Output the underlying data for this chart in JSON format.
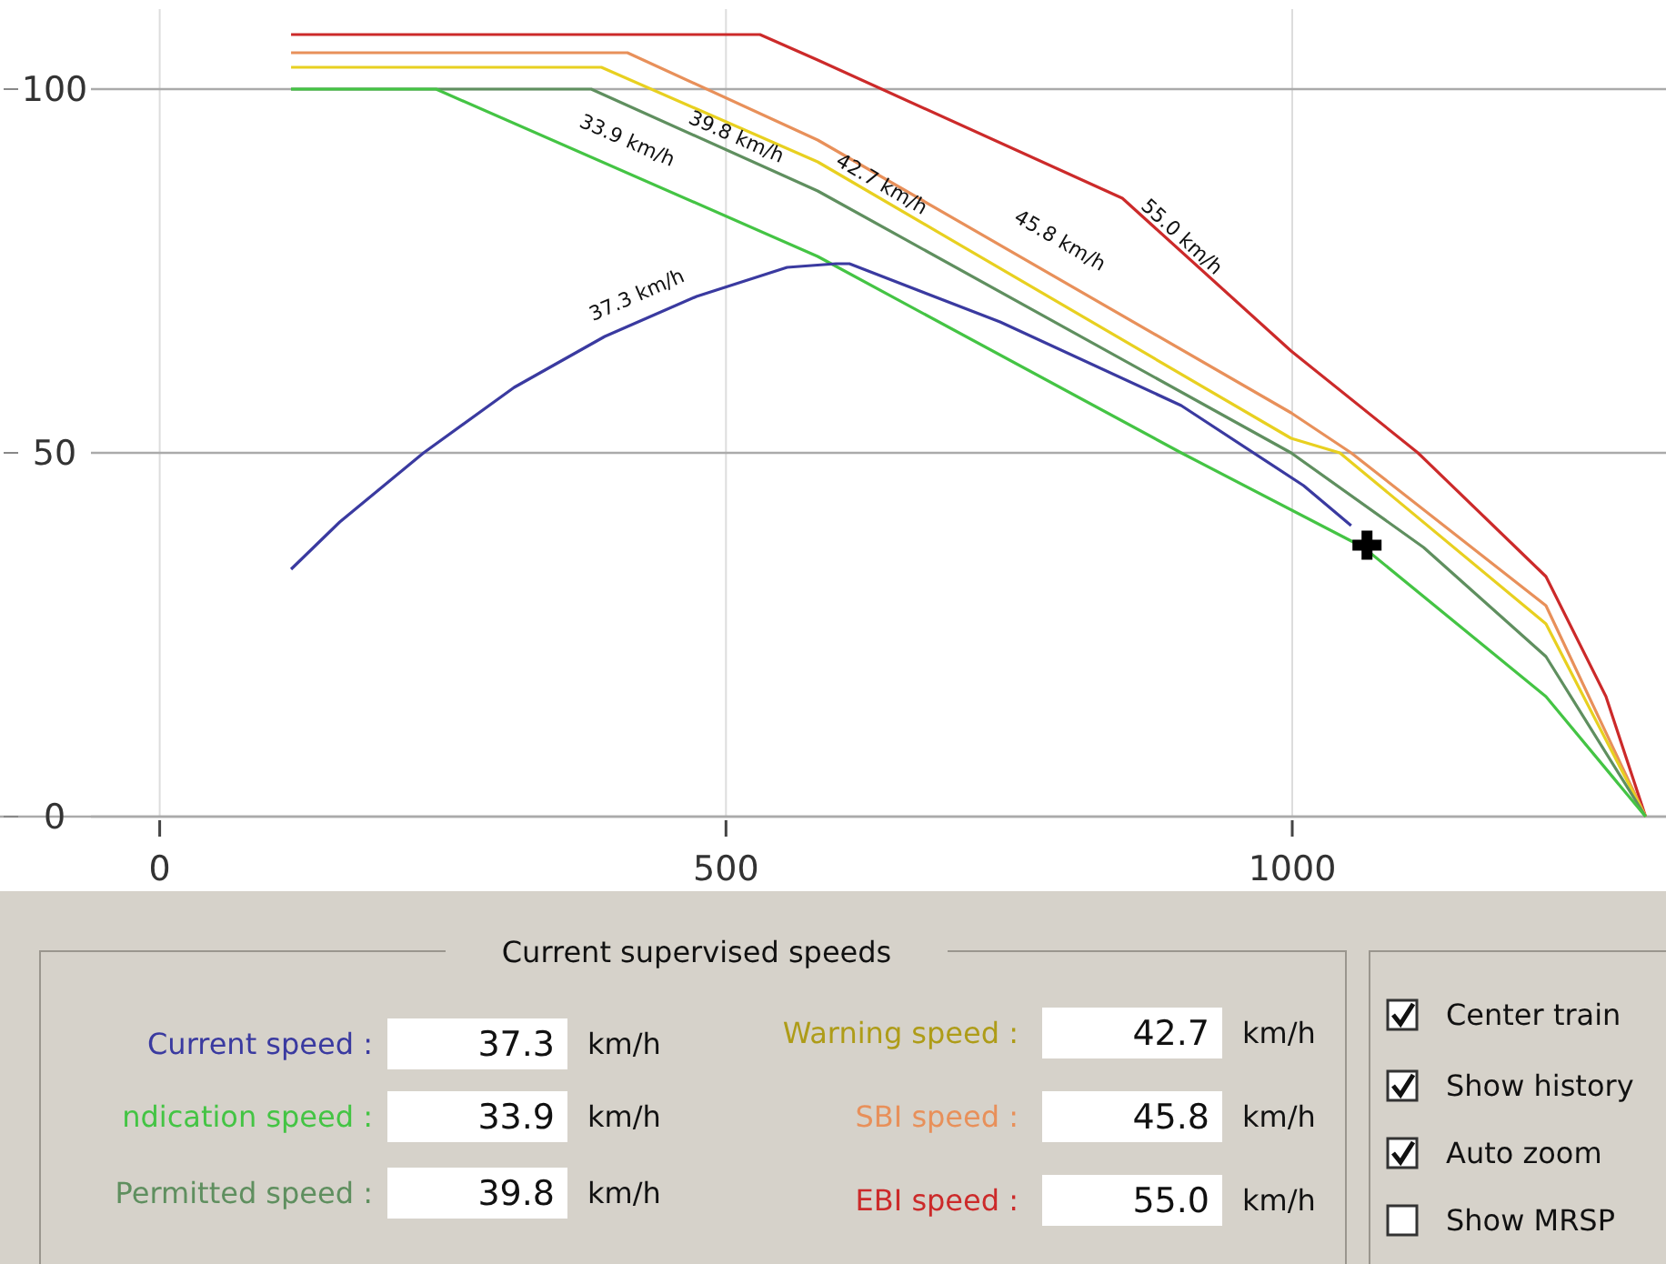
{
  "chart_data": [
    {
      "type": "line",
      "xlim": [
        -141,
        1330
      ],
      "ylim": [
        0,
        111
      ],
      "xticks": [
        0,
        500,
        1000
      ],
      "yticks": [
        0,
        50,
        100
      ],
      "grid": true,
      "series": [
        {
          "color": "#cc2a2a",
          "x": [
            116,
            530,
            581,
            850,
            999,
            1111,
            1224,
            1277,
            1312
          ],
          "values": [
            107.5,
            107.5,
            104,
            85,
            64,
            50,
            33,
            16.5,
            0
          ]
        },
        {
          "color": "#e8905a",
          "x": [
            116,
            413,
            581,
            999,
            1052,
            1224,
            1312
          ],
          "values": [
            105,
            105,
            93,
            55.5,
            50,
            29,
            0
          ]
        },
        {
          "color": "#e8d020",
          "x": [
            116,
            390,
            581,
            999,
            1042,
            1224,
            1312
          ],
          "values": [
            103,
            103,
            90,
            52,
            50,
            26.5,
            0
          ]
        },
        {
          "color": "#5f8f5f",
          "x": [
            116,
            381,
            581,
            999,
            1116,
            1224,
            1312
          ],
          "values": [
            100,
            100,
            86,
            50,
            37,
            22,
            0
          ]
        },
        {
          "color": "#44c444",
          "x": [
            116,
            244,
            581,
            902,
            1063,
            1224,
            1312
          ],
          "values": [
            100,
            100,
            77,
            50,
            37,
            16.5,
            0
          ]
        },
        {
          "color": "#3a3aa0",
          "x": [
            116,
            159,
            233,
            313,
            393,
            474,
            554,
            597,
            609,
            742,
            902,
            1010,
            1052
          ],
          "values": [
            34,
            40.5,
            50,
            59,
            66,
            71.5,
            75.5,
            76,
            76,
            68,
            56.5,
            45.5,
            40
          ]
        },
        {
          "type": "scatter",
          "color": "#000000",
          "marker": "cross",
          "x": [
            1066
          ],
          "values": [
            37.3
          ]
        }
      ],
      "annotations": [
        "37.3 km/h",
        "33.9 km/h",
        "39.8 km/h",
        "42.7 km/h",
        "45.8 km/h",
        "55.0 km/h"
      ]
    },
    {
      "type": "other",
      "title": "Current supervised speeds",
      "annotations": [
        "Current speed :",
        "37.3",
        "km/h",
        "ndication speed :",
        "33.9",
        "km/h",
        "Permitted speed :",
        "39.8",
        "km/h",
        "Warning speed :",
        "42.7",
        "km/h",
        "SBI speed :",
        "45.8",
        "km/h",
        "EBI speed :",
        "55.0",
        "km/h",
        "Center train",
        "Show history",
        "Auto zoom",
        "Show MRSP"
      ]
    }
  ]
}
